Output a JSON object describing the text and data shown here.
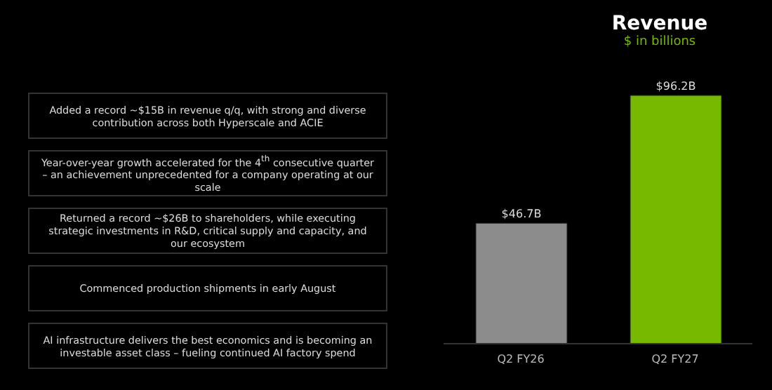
{
  "chart_data": {
    "type": "bar",
    "title": "Revenue",
    "subtitle": "$ in billions",
    "categories": [
      "Q2 FY26",
      "Q2 FY27"
    ],
    "values": [
      46.7,
      96.2
    ],
    "colors": [
      "#8c8c8c",
      "#76b900"
    ],
    "value_labels": [
      "$46.7B",
      "$96.2B"
    ],
    "annotations": [
      "Added a record ~$15B in revenue q/q, with strong and diverse contribution across both Hyperscale and ACIE",
      "Year-over-year growth accelerated for the 4$^{th}$ consecutive quarter – an achievement unprecedented for a company operating at our scale",
      "Returned a record ~$26B to shareholders, while executing strategic investments in R&D, critical supply and capacity, and our ecosystem",
      "Commenced production shipments in early August",
      "AI infrastructure delivers the best economics and is becoming an investable asset class – fueling continued AI factory spend"
    ]
  }
}
